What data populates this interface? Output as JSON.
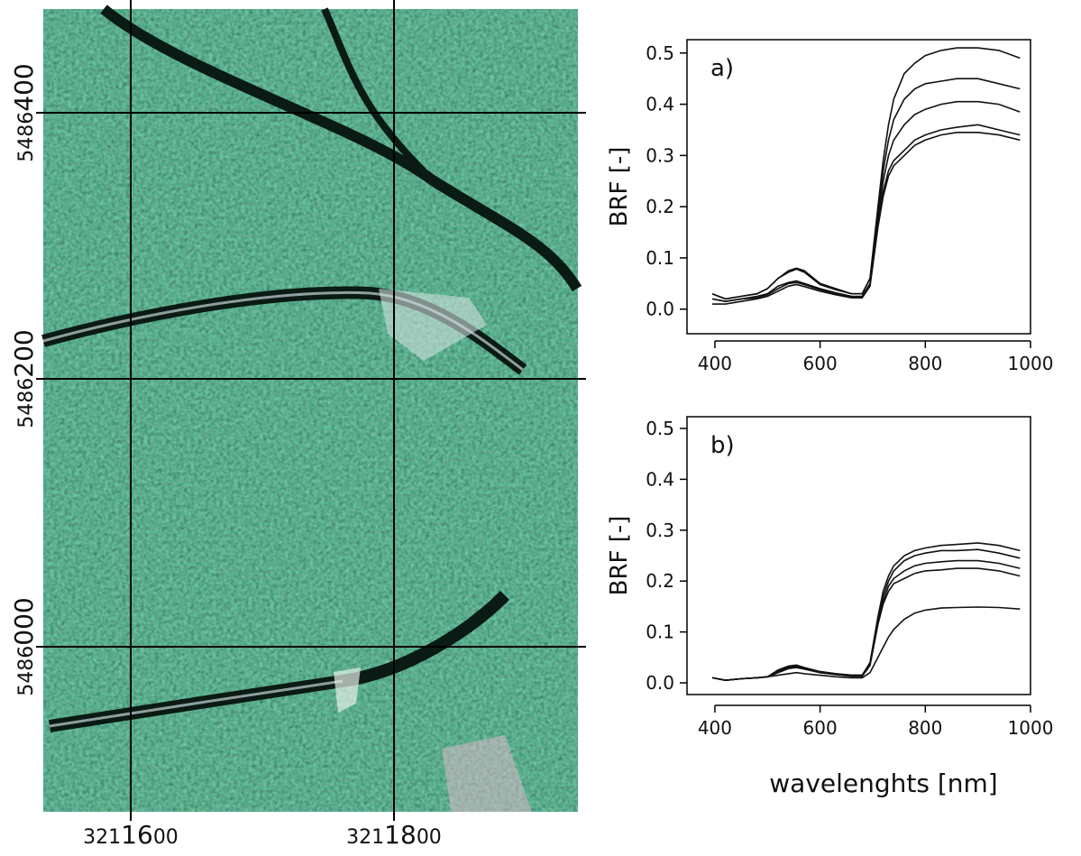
{
  "map": {
    "x_labels": [
      {
        "prefix": "321",
        "main": "16",
        "suffix": "00"
      },
      {
        "prefix": "321",
        "main": "18",
        "suffix": "00"
      }
    ],
    "y_labels": [
      {
        "prefix": "5486",
        "main": "400"
      },
      {
        "prefix": "5486",
        "main": "200"
      },
      {
        "prefix": "5486",
        "main": "000"
      }
    ]
  },
  "chart_data": [
    {
      "type": "line",
      "panel_label": "a)",
      "y_label": "BRF [-]",
      "x": [
        395,
        420,
        450,
        480,
        500,
        520,
        540,
        555,
        570,
        600,
        630,
        660,
        680,
        695,
        710,
        720,
        730,
        740,
        760,
        780,
        800,
        830,
        860,
        900,
        940,
        980
      ],
      "series": [
        {
          "color": "#111111",
          "values": [
            0.03,
            0.02,
            0.025,
            0.03,
            0.04,
            0.06,
            0.075,
            0.08,
            0.075,
            0.05,
            0.04,
            0.03,
            0.03,
            0.06,
            0.2,
            0.29,
            0.36,
            0.41,
            0.46,
            0.48,
            0.495,
            0.505,
            0.51,
            0.51,
            0.505,
            0.49
          ]
        },
        {
          "color": "#111111",
          "values": [
            0.03,
            0.02,
            0.025,
            0.03,
            0.04,
            0.06,
            0.072,
            0.078,
            0.072,
            0.048,
            0.038,
            0.03,
            0.03,
            0.06,
            0.19,
            0.27,
            0.33,
            0.37,
            0.41,
            0.43,
            0.44,
            0.445,
            0.45,
            0.45,
            0.44,
            0.43
          ]
        },
        {
          "color": "#111111",
          "values": [
            0.02,
            0.015,
            0.02,
            0.025,
            0.03,
            0.045,
            0.052,
            0.055,
            0.05,
            0.04,
            0.032,
            0.025,
            0.025,
            0.05,
            0.18,
            0.25,
            0.3,
            0.33,
            0.36,
            0.38,
            0.39,
            0.4,
            0.405,
            0.405,
            0.4,
            0.385
          ]
        },
        {
          "color": "#111111",
          "values": [
            0.02,
            0.015,
            0.02,
            0.022,
            0.028,
            0.04,
            0.05,
            0.052,
            0.048,
            0.038,
            0.03,
            0.024,
            0.024,
            0.05,
            0.17,
            0.23,
            0.27,
            0.29,
            0.31,
            0.33,
            0.34,
            0.35,
            0.355,
            0.36,
            0.35,
            0.34
          ]
        },
        {
          "color": "#111111",
          "values": [
            0.01,
            0.01,
            0.015,
            0.02,
            0.025,
            0.035,
            0.045,
            0.048,
            0.044,
            0.035,
            0.028,
            0.022,
            0.022,
            0.045,
            0.16,
            0.22,
            0.26,
            0.28,
            0.3,
            0.32,
            0.33,
            0.34,
            0.345,
            0.345,
            0.34,
            0.33
          ]
        }
      ],
      "xlim": [
        347,
        1000
      ],
      "xticks": [
        400,
        600,
        800,
        1000
      ],
      "ylim": [
        -0.048,
        0.526
      ],
      "yticks": [
        {
          "value": 0,
          "label": "0.0"
        },
        0.1,
        0.2,
        0.3,
        0.4,
        0.5
      ]
    },
    {
      "type": "line",
      "panel_label": "b)",
      "y_label": "BRF [-]",
      "x_label": "wavelenghts [nm]",
      "x": [
        395,
        420,
        450,
        480,
        500,
        520,
        540,
        555,
        570,
        600,
        630,
        660,
        680,
        695,
        710,
        720,
        730,
        740,
        760,
        780,
        800,
        830,
        860,
        900,
        940,
        980
      ],
      "series": [
        {
          "color": "#111111",
          "values": [
            0.01,
            0.005,
            0.008,
            0.01,
            0.012,
            0.025,
            0.033,
            0.035,
            0.03,
            0.022,
            0.018,
            0.015,
            0.015,
            0.04,
            0.13,
            0.18,
            0.21,
            0.23,
            0.25,
            0.26,
            0.265,
            0.27,
            0.272,
            0.275,
            0.27,
            0.26
          ]
        },
        {
          "color": "#111111",
          "values": [
            0.01,
            0.005,
            0.008,
            0.01,
            0.012,
            0.024,
            0.032,
            0.034,
            0.03,
            0.022,
            0.018,
            0.015,
            0.015,
            0.038,
            0.125,
            0.17,
            0.2,
            0.22,
            0.24,
            0.25,
            0.255,
            0.26,
            0.26,
            0.262,
            0.255,
            0.245
          ]
        },
        {
          "color": "#111111",
          "values": [
            0.01,
            0.005,
            0.008,
            0.01,
            0.012,
            0.022,
            0.03,
            0.032,
            0.028,
            0.02,
            0.017,
            0.014,
            0.014,
            0.036,
            0.12,
            0.16,
            0.19,
            0.205,
            0.22,
            0.23,
            0.235,
            0.238,
            0.24,
            0.24,
            0.235,
            0.225
          ]
        },
        {
          "color": "#111111",
          "values": [
            0.01,
            0.005,
            0.008,
            0.01,
            0.012,
            0.02,
            0.028,
            0.03,
            0.027,
            0.02,
            0.016,
            0.013,
            0.013,
            0.034,
            0.115,
            0.155,
            0.18,
            0.195,
            0.205,
            0.215,
            0.22,
            0.222,
            0.225,
            0.225,
            0.22,
            0.21
          ]
        },
        {
          "color": "#111111",
          "values": [
            0.01,
            0.005,
            0.008,
            0.01,
            0.012,
            0.015,
            0.018,
            0.02,
            0.018,
            0.015,
            0.012,
            0.01,
            0.01,
            0.02,
            0.05,
            0.07,
            0.09,
            0.105,
            0.125,
            0.137,
            0.143,
            0.147,
            0.148,
            0.149,
            0.148,
            0.145
          ]
        }
      ],
      "xlim": [
        347,
        1000
      ],
      "xticks": [
        400,
        600,
        800,
        1000
      ],
      "ylim": [
        -0.023,
        0.523
      ],
      "yticks": [
        {
          "value": 0,
          "label": "0.0"
        },
        0.1,
        0.2,
        0.3,
        0.4,
        0.5
      ]
    }
  ]
}
